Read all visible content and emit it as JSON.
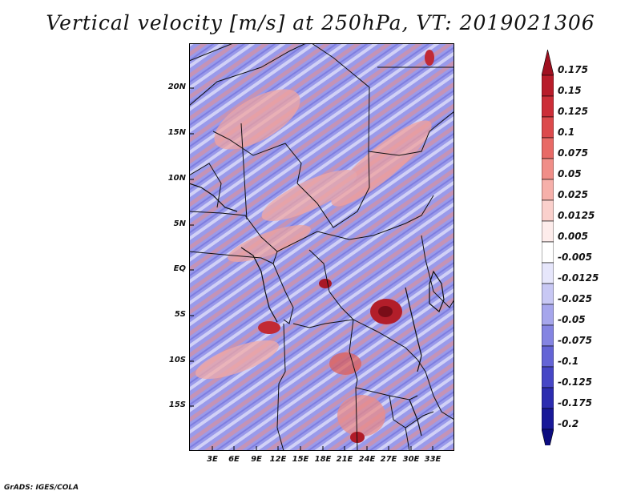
{
  "title": "Vertical velocity [m/s] at 250hPa, VT: 2019021306",
  "credit": "GrADS: IGES/COLA",
  "lat_labels": [
    "20N",
    "15N",
    "10N",
    "5N",
    "EQ",
    "5S",
    "10S",
    "15S"
  ],
  "lon_labels": [
    "3E",
    "6E",
    "9E",
    "12E",
    "15E",
    "18E",
    "21E",
    "24E",
    "27E",
    "30E",
    "33E"
  ],
  "colorbar": {
    "labels": [
      "0.175",
      "0.15",
      "0.125",
      "0.1",
      "0.075",
      "0.05",
      "0.025",
      "0.0125",
      "0.005",
      "-0.005",
      "-0.0125",
      "-0.025",
      "-0.05",
      "-0.075",
      "-0.1",
      "-0.125",
      "-0.175",
      "-0.2"
    ],
    "colors": [
      "#a01020",
      "#b81c2a",
      "#cc2e38",
      "#dc4a4c",
      "#e86a66",
      "#f08e88",
      "#f6b0aa",
      "#fad0cc",
      "#fdeceb",
      "#ffffff",
      "#e6e6fb",
      "#c8c8f4",
      "#a6a6ec",
      "#8484e2",
      "#6464d6",
      "#4646c6",
      "#2c2cb0",
      "#181898",
      "#0c0c80"
    ]
  }
}
